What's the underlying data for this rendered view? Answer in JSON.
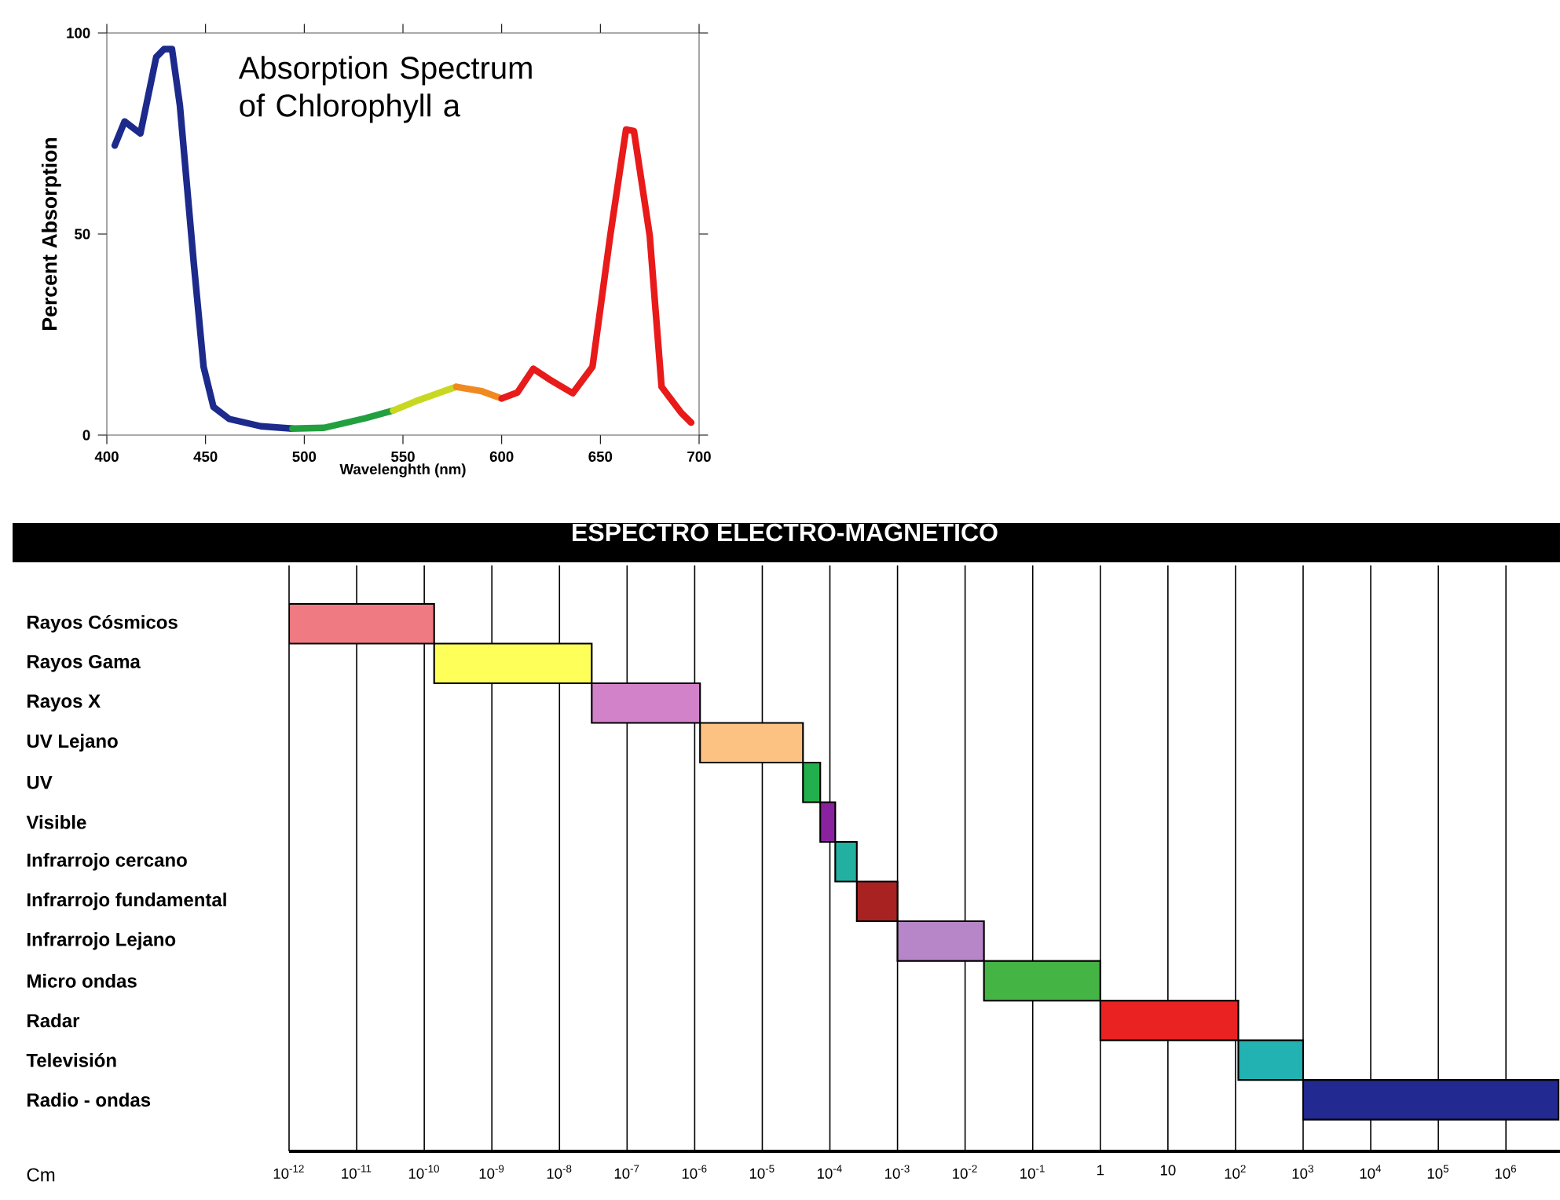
{
  "chart_data": [
    {
      "type": "line",
      "title": "Absorption Spectrum of Chlorophyll a",
      "xlabel": "Wavelenghth (nm)",
      "ylabel": "Percent Absorption",
      "xlim": [
        400,
        700
      ],
      "ylim": [
        0,
        100
      ],
      "xticks": [
        400,
        450,
        500,
        550,
        600,
        650,
        700
      ],
      "yticks": [
        0,
        50,
        100
      ],
      "series": [
        {
          "color": "#1c2a8c",
          "x": [
            404,
            409,
            417,
            425,
            429,
            433,
            437,
            444,
            449,
            454,
            462,
            478,
            494
          ],
          "values": [
            72,
            78,
            75,
            94,
            96,
            96,
            82,
            43,
            17,
            7,
            4,
            2.2,
            1.6
          ]
        },
        {
          "color": "#22a040",
          "x": [
            494,
            510,
            531,
            545
          ],
          "values": [
            1.6,
            1.8,
            4.2,
            6.1
          ]
        },
        {
          "color": "#c8d820",
          "x": [
            545,
            558,
            577
          ],
          "values": [
            6.1,
            8.7,
            12
          ]
        },
        {
          "color": "#f08a20",
          "x": [
            577,
            590,
            600
          ],
          "values": [
            12,
            10.9,
            9.1
          ]
        },
        {
          "color": "#e81a1a",
          "x": [
            600,
            608,
            616,
            624,
            636,
            646,
            655,
            663,
            667,
            675,
            681,
            691,
            696
          ],
          "values": [
            9.1,
            10.6,
            16.5,
            13.9,
            10.4,
            17,
            49.6,
            76,
            75.6,
            49.6,
            12,
            5.5,
            3.1
          ]
        }
      ]
    },
    {
      "type": "bar",
      "orientation": "horizontal",
      "title": "ESPECTRO ELECTRO-MAGNÉTICO",
      "xlabel": "Cm",
      "log": "x",
      "grid": "x",
      "categories": [
        "Rayos Cósmicos",
        "Rayos Gama",
        "Rayos X",
        "UV Lejano",
        "UV",
        "Visible",
        "Infrarrojo cercano",
        "Infrarrojo fundamental",
        "Infrarrojo Lejano",
        "Micro ondas",
        "Radar",
        "Televisión",
        "Radio - ondas"
      ],
      "base": [
        1e-12,
        1.4e-10,
        3e-08,
        1.2e-06,
        4e-05,
        7.2e-05,
        0.00012,
        0.00025,
        0.001,
        0.019,
        1,
        110,
        1000
      ],
      "values": [
        1.39e-10,
        2.986e-08,
        1.17e-06,
        3.88e-05,
        3.2e-05,
        4.8e-05,
        0.00013,
        0.00075,
        0.018,
        0.981,
        109,
        890,
        5999000
      ],
      "colors": [
        "#f07a82",
        "#ffff5a",
        "#d282c8",
        "#fbc282",
        "#22b04e",
        "#8a22a0",
        "#22b0a0",
        "#a82222",
        "#b686c8",
        "#44b444",
        "#ea2222",
        "#22b2b2",
        "#222a92"
      ],
      "xlim": [
        1e-12,
        6300000.0
      ],
      "xticks": [
        {
          "value": 1e-12,
          "label": "10$^{-12}$"
        },
        {
          "value": 1e-11,
          "label": "10$^{-11}$"
        },
        {
          "value": 1e-10,
          "label": "10$^{-10}$"
        },
        {
          "value": 1e-09,
          "label": "10$^{-9}$"
        },
        {
          "value": 1e-08,
          "label": "10$^{-8}$"
        },
        {
          "value": 1e-07,
          "label": "10$^{-7}$"
        },
        {
          "value": 1e-06,
          "label": "10$^{-6}$"
        },
        {
          "value": 1e-05,
          "label": "10$^{-5}$"
        },
        {
          "value": 0.0001,
          "label": "10$^{-4}$"
        },
        {
          "value": 0.001,
          "label": "10$^{-3}$"
        },
        {
          "value": 0.01,
          "label": "10$^{-2}$"
        },
        {
          "value": 0.1,
          "label": "10$^{-1}$"
        },
        1,
        10,
        {
          "value": 100,
          "label": "10$^{2}$"
        },
        {
          "value": 1000,
          "label": "10$^{3}$"
        },
        {
          "value": 10000,
          "label": "10$^{4}$"
        },
        {
          "value": 100000,
          "label": "10$^{5}$"
        },
        {
          "value": 1000000,
          "label": "10$^{6}$"
        }
      ]
    }
  ]
}
